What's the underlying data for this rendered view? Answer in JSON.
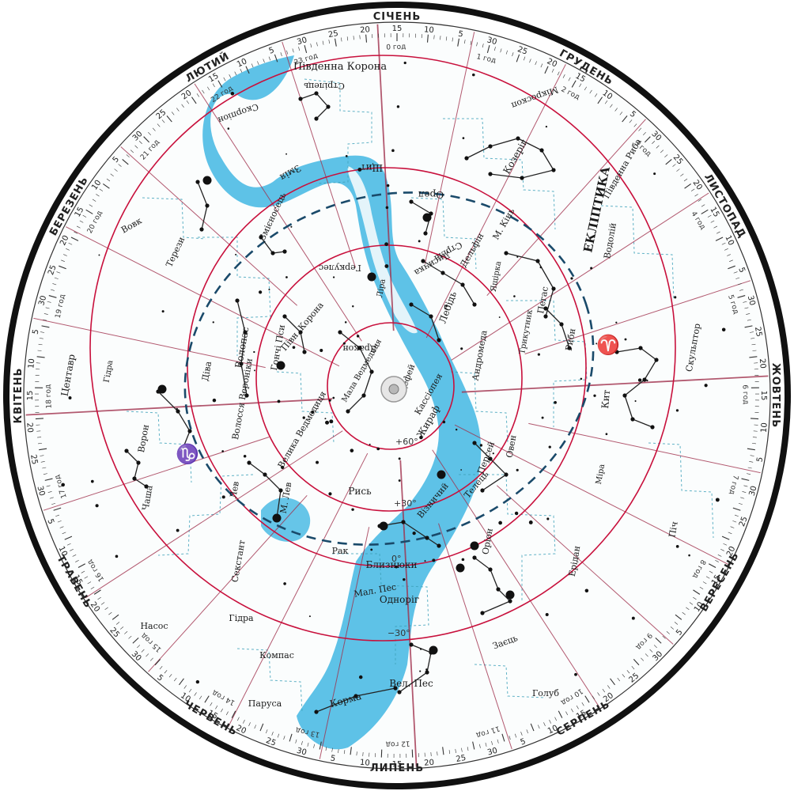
{
  "title": "",
  "months": [
    {
      "label": "СІЧЕНЬ"
    },
    {
      "label": "ЛЮТИЙ"
    },
    {
      "label": "БЕРЕЗЕНЬ"
    },
    {
      "label": "КВІТЕНЬ"
    },
    {
      "label": "ТРАВЕНЬ"
    },
    {
      "label": "ЧЕРВЕНЬ"
    },
    {
      "label": "ЛИПЕНЬ"
    },
    {
      "label": "СЕРПЕНЬ"
    },
    {
      "label": "ВЕРЕСЕНЬ"
    },
    {
      "label": "ЖОВТЕНЬ"
    },
    {
      "label": "ЛИСТОПАД"
    },
    {
      "label": "ГРУДЕНЬ"
    }
  ],
  "day_labels": [
    "5",
    "10",
    "15",
    "20",
    "25",
    "30"
  ],
  "hour_labels": [
    "0 год",
    "1 год",
    "2 год",
    "3 год",
    "4 год",
    "5 год",
    "6 год",
    "7 год",
    "8 год",
    "9 год",
    "10 год",
    "11 год",
    "12 год",
    "13 год",
    "14 год",
    "15 год",
    "16 год",
    "17 год",
    "18 год",
    "19 год",
    "20 год",
    "21 год",
    "22 год",
    "23 год"
  ],
  "dec_labels": [
    "+60°",
    "+30°",
    "0°",
    "−30°"
  ],
  "ecliptic_label": "ЕКЛІПТИКА",
  "zodiac_symbols": [
    "♑",
    "♈"
  ],
  "constellations": [
    {
      "name": "Південна Корона"
    },
    {
      "name": "Стрілець"
    },
    {
      "name": "Мікроскоп"
    },
    {
      "name": "Скорпіон"
    },
    {
      "name": "Щит"
    },
    {
      "name": "Орел"
    },
    {
      "name": "Козеріг"
    },
    {
      "name": "Південна Риба"
    },
    {
      "name": "Змія"
    },
    {
      "name": "Змієносець"
    },
    {
      "name": "Вовк"
    },
    {
      "name": "Терези"
    },
    {
      "name": "Геркулес"
    },
    {
      "name": "Стріла"
    },
    {
      "name": "Лисичка"
    },
    {
      "name": "Дельфін"
    },
    {
      "name": "Кит"
    },
    {
      "name": "Водолій"
    },
    {
      "name": "М. Кінь"
    },
    {
      "name": "Ліра"
    },
    {
      "name": "Лебідь"
    },
    {
      "name": "Пегас"
    },
    {
      "name": "Риби"
    },
    {
      "name": "Скульптор"
    },
    {
      "name": "Півн. Корона"
    },
    {
      "name": "Дракон"
    },
    {
      "name": "Андромеда"
    },
    {
      "name": "Ящірка"
    },
    {
      "name": "Волопас"
    },
    {
      "name": "Гончі Пси"
    },
    {
      "name": "Мала Ведмедиця"
    },
    {
      "name": "Цефей"
    },
    {
      "name": "Кассіопея"
    },
    {
      "name": "Трикутник"
    },
    {
      "name": "Центавр"
    },
    {
      "name": "Гідра"
    },
    {
      "name": "Діва"
    },
    {
      "name": "Волосся Вероніки"
    },
    {
      "name": "Жираф"
    },
    {
      "name": "Овен"
    },
    {
      "name": "Велика Ведмедиця"
    },
    {
      "name": "Персей"
    },
    {
      "name": "Ворон"
    },
    {
      "name": "М. Лев"
    },
    {
      "name": "Рись"
    },
    {
      "name": "Візничий"
    },
    {
      "name": "Телець"
    },
    {
      "name": "Міра"
    },
    {
      "name": "Лев"
    },
    {
      "name": "Чаша"
    },
    {
      "name": "Секстант"
    },
    {
      "name": "Рак"
    },
    {
      "name": "Близнюки"
    },
    {
      "name": "Оріон"
    },
    {
      "name": "Ерідан"
    },
    {
      "name": "Піч"
    },
    {
      "name": "Мал. Пес"
    },
    {
      "name": "Насос"
    },
    {
      "name": "Гідра"
    },
    {
      "name": "Одноріг"
    },
    {
      "name": "Заєць"
    },
    {
      "name": "Компас"
    },
    {
      "name": "Вел. Пес"
    },
    {
      "name": "Голуб"
    },
    {
      "name": "Парусa"
    },
    {
      "name": "Корма"
    }
  ],
  "colors": {
    "milky_way": "#55bfe6",
    "ring_lines": "#c8103c",
    "hour_lines": "#a0304c",
    "boundaries": "#3a9fb8",
    "stars": "#111111",
    "bezel": "#111111",
    "ecliptic": "#1a4a6a"
  }
}
